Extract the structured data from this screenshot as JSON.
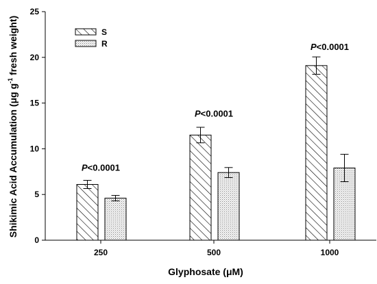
{
  "chart_data": {
    "type": "bar",
    "xlabel": "Glyphosate (μM)",
    "ylabel": {
      "main": "Shikimic Acid Accumulation (μg g",
      "sup": "-1",
      "tail": " fresh weight)"
    },
    "ylim": [
      0,
      25
    ],
    "yticks": [
      0,
      5,
      10,
      15,
      20,
      25
    ],
    "categories": [
      "250",
      "500",
      "1000"
    ],
    "series": [
      {
        "name": "S",
        "values": [
          6.1,
          11.5,
          19.1
        ],
        "errors": [
          0.45,
          0.85,
          0.95
        ],
        "pattern": "diagonal-hatch"
      },
      {
        "name": "R",
        "values": [
          4.6,
          7.4,
          7.9
        ],
        "errors": [
          0.3,
          0.55,
          1.5
        ],
        "pattern": "dotted"
      }
    ],
    "annotations": [
      {
        "category": "250",
        "italic": "P",
        "rest": "<0.0001",
        "y": 7.6
      },
      {
        "category": "500",
        "italic": "P",
        "rest": "<0.0001",
        "y": 13.5
      },
      {
        "category": "1000",
        "italic": "P",
        "rest": "<0.0001",
        "y": 20.8
      }
    ],
    "legend_position": "top-left",
    "grid": false
  }
}
